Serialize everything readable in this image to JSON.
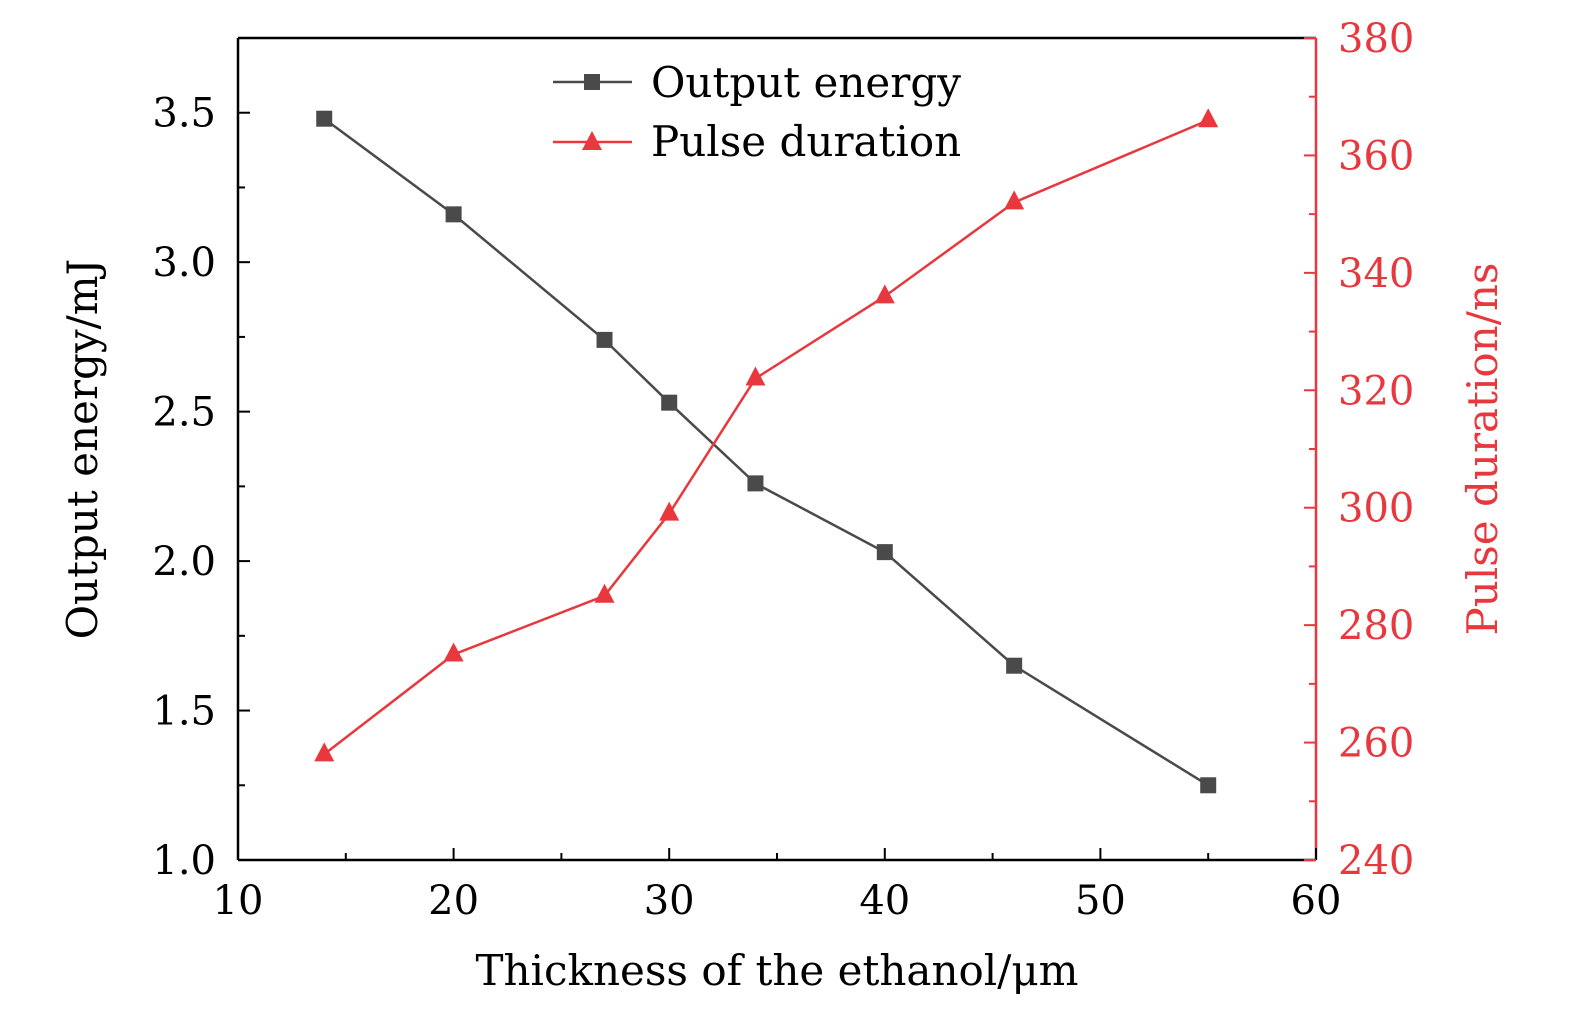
{
  "chart_data": {
    "type": "line",
    "title": "",
    "xlabel": "Thickness of the ethanol/μm",
    "ylabel_left": "Output energy/mJ",
    "ylabel_right": "Pulse duration/ns",
    "xlim": [
      10,
      60
    ],
    "ylim_left": [
      1.0,
      3.75
    ],
    "ylim_right": [
      240,
      380
    ],
    "x_ticks": [
      10,
      20,
      30,
      40,
      50,
      60
    ],
    "y_left_ticks": [
      1.0,
      1.5,
      2.0,
      2.5,
      3.0,
      3.5
    ],
    "y_right_ticks": [
      240,
      260,
      280,
      300,
      320,
      340,
      360,
      380
    ],
    "x_tick_labels": [
      "10",
      "20",
      "30",
      "40",
      "50",
      "60"
    ],
    "y_left_tick_labels": [
      "1.0",
      "1.5",
      "2.0",
      "2.5",
      "3.0",
      "3.5"
    ],
    "y_right_tick_labels": [
      "240",
      "260",
      "280",
      "300",
      "320",
      "340",
      "360",
      "380"
    ],
    "grid": false,
    "legend_position": "top-center",
    "x": [
      14,
      20,
      27,
      30,
      34,
      40,
      46,
      55
    ],
    "series": [
      {
        "name": "Output energy",
        "axis": "left",
        "marker": "square",
        "color": "#4a4a4a",
        "values": [
          3.48,
          3.16,
          2.74,
          2.53,
          2.26,
          2.03,
          1.65,
          1.25
        ]
      },
      {
        "name": "Pulse duration",
        "axis": "right",
        "marker": "triangle",
        "color": "#e8383d",
        "values": [
          258,
          275,
          285,
          299,
          322,
          336,
          352,
          366
        ]
      }
    ]
  }
}
